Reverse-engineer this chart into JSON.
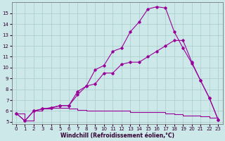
{
  "xlabel": "Windchill (Refroidissement éolien,°C)",
  "bg_color": "#cce8e8",
  "grid_color": "#aacccc",
  "line_color": "#990099",
  "xlim": [
    -0.5,
    23.5
  ],
  "ylim": [
    4.8,
    16.0
  ],
  "yticks": [
    5,
    6,
    7,
    8,
    9,
    10,
    11,
    12,
    13,
    14,
    15
  ],
  "xticks": [
    0,
    1,
    2,
    3,
    4,
    5,
    6,
    7,
    8,
    9,
    10,
    11,
    12,
    13,
    14,
    15,
    16,
    17,
    18,
    19,
    20,
    21,
    22,
    23
  ],
  "curve1_x": [
    0,
    1,
    2,
    3,
    4,
    5,
    6,
    7,
    8,
    9,
    10,
    11,
    12,
    13,
    14,
    15,
    16,
    17,
    18,
    19,
    20,
    21,
    22,
    23
  ],
  "curve1_y": [
    5.8,
    5.1,
    6.0,
    6.2,
    6.3,
    6.3,
    6.2,
    6.1,
    6.0,
    6.0,
    6.0,
    6.0,
    6.0,
    5.9,
    5.9,
    5.9,
    5.9,
    5.8,
    5.7,
    5.6,
    5.6,
    5.5,
    5.4,
    5.2
  ],
  "curve2_x": [
    0,
    1,
    2,
    3,
    4,
    5,
    6,
    7,
    8,
    9,
    10,
    11,
    12,
    13,
    14,
    15,
    16,
    17,
    18,
    19,
    20,
    21,
    22,
    23
  ],
  "curve2_y": [
    5.8,
    5.1,
    6.0,
    6.2,
    6.3,
    6.5,
    6.5,
    7.5,
    8.3,
    8.5,
    9.5,
    9.5,
    10.3,
    10.5,
    10.5,
    11.0,
    11.5,
    12.0,
    12.5,
    12.5,
    10.5,
    8.8,
    7.2,
    5.2
  ],
  "curve3_x": [
    0,
    1,
    2,
    3,
    4,
    5,
    6,
    7,
    8,
    9,
    10,
    11,
    12,
    13,
    14,
    15,
    16,
    17,
    18,
    19,
    20,
    21,
    22,
    23
  ],
  "curve3_y": [
    5.8,
    5.1,
    6.0,
    6.2,
    6.3,
    6.5,
    6.5,
    7.8,
    8.3,
    9.8,
    10.2,
    11.5,
    11.8,
    13.3,
    14.2,
    15.4,
    15.6,
    15.5,
    13.3,
    11.8,
    10.4,
    8.8,
    7.2,
    5.2
  ]
}
